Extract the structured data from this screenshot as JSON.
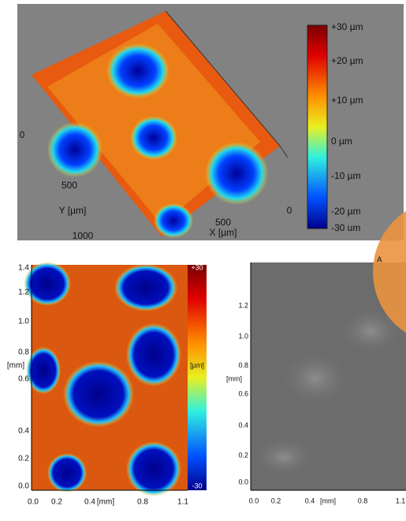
{
  "top_panel": {
    "colorbar_labels": [
      "+30 µm",
      "+20 µm",
      "+10 µm",
      "0 µm",
      "-10 µm",
      "-20 µm",
      "-30 um"
    ],
    "y_axis": {
      "ticks": [
        "0",
        "500",
        "1000"
      ],
      "label": "Y [µm]"
    },
    "x_axis": {
      "ticks": [
        "500"
      ],
      "label": "X [µm]"
    },
    "z_tick": "0"
  },
  "height_map": {
    "y_ticks": [
      "1.4",
      "1.2",
      "1.0",
      "0.8",
      "0.6",
      "0.4",
      "0.2",
      "0.0"
    ],
    "y_unit": "[mm]",
    "x_ticks": [
      "0.0",
      "0.2",
      "0.4",
      "0.8",
      "1.1"
    ],
    "x_unit": "[mm]",
    "colorbar": {
      "max": "+30",
      "unit": "[µm]",
      "min": "-30"
    }
  },
  "sem_image": {
    "y_ticks": [
      "1.2",
      "1.0",
      "0.8",
      "0.6",
      "0.4",
      "0.2",
      "0.0"
    ],
    "y_unit": "[mm]",
    "x_ticks": [
      "0.0",
      "0.2",
      "0.4",
      "0.8",
      "1.1"
    ],
    "x_unit": "[mm]"
  },
  "overlay": {
    "label": "A"
  }
}
